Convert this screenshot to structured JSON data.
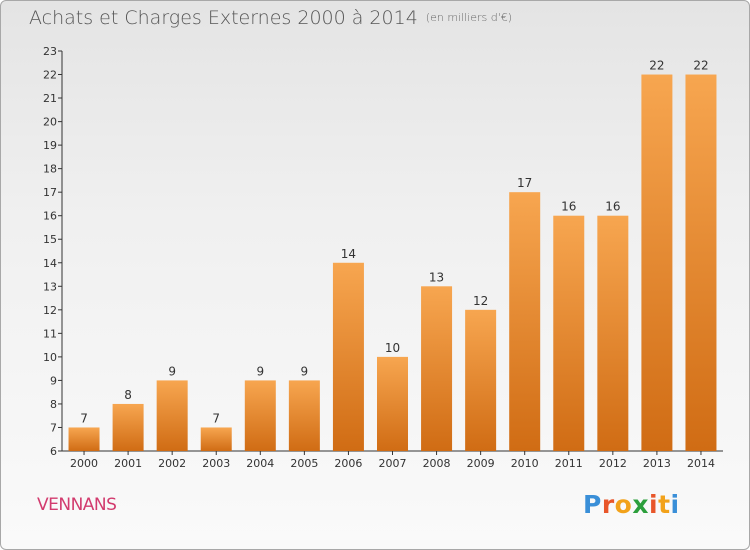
{
  "header": {
    "title": "Achats et Charges Externes 2000 à 2014",
    "subtitle": "(en milliers d'€)"
  },
  "footer": {
    "commune": "VENNANS",
    "logo_text": "Proxiti",
    "logo_colors": [
      "#3a8fd8",
      "#e8562a",
      "#f2a21a",
      "#2c9f3c",
      "#e8562a",
      "#f2a21a",
      "#3a8fd8"
    ]
  },
  "colors": {
    "bar_light": "#f7a650",
    "bar_dark": "#d06c14",
    "axis": "#333333",
    "grid": "#d9d9d9"
  },
  "chart_data": {
    "type": "bar",
    "title": "Achats et Charges Externes 2000 à 2014",
    "subtitle": "(en milliers d'€)",
    "xlabel": "",
    "ylabel": "",
    "categories": [
      "2000",
      "2001",
      "2002",
      "2003",
      "2004",
      "2005",
      "2006",
      "2007",
      "2008",
      "2009",
      "2010",
      "2011",
      "2012",
      "2013",
      "2014"
    ],
    "values": [
      7,
      8,
      9,
      7,
      9,
      9,
      14,
      10,
      13,
      12,
      17,
      16,
      16,
      22,
      22
    ],
    "ylim": [
      6,
      23
    ],
    "yticks": [
      6,
      7,
      8,
      9,
      10,
      11,
      12,
      13,
      14,
      15,
      16,
      17,
      18,
      19,
      20,
      21,
      22,
      23
    ],
    "grid": false,
    "data_labels": true
  }
}
